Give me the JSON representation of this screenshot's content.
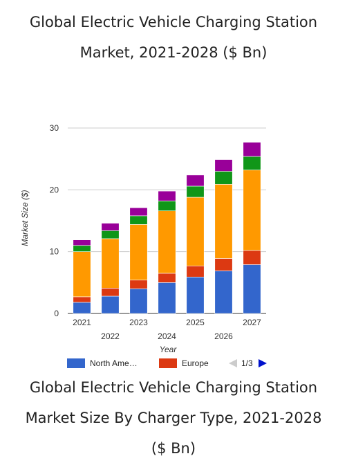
{
  "header": {
    "title_line1": "Global Electric Vehicle Charging Station",
    "title_line2": "Market, 2021-2028 ($ Bn)"
  },
  "footer": {
    "title_line1": "Global Electric Vehicle Charging Station",
    "title_line2": "Market Size By Charger Type, 2021-2028",
    "title_line3": "($ Bn)"
  },
  "chart_data": {
    "type": "bar",
    "stacked": true,
    "categories": [
      "2021",
      "2022",
      "2023",
      "2024",
      "2025",
      "2026",
      "2027"
    ],
    "xlabel": "Year",
    "ylabel": "Market Size ($)",
    "ylim": [
      0,
      30
    ],
    "yticks": [
      0,
      10,
      20,
      30
    ],
    "grid": true,
    "legend_position": "bottom",
    "series": [
      {
        "name": "North America",
        "legend_label": "North Ame…",
        "color": "#3366cc",
        "values": [
          1.8,
          2.8,
          4.0,
          5.0,
          5.9,
          6.9,
          7.9
        ]
      },
      {
        "name": "Europe",
        "legend_label": "Europe",
        "color": "#dc3912",
        "values": [
          0.9,
          1.3,
          1.4,
          1.5,
          1.8,
          2.0,
          2.3
        ]
      },
      {
        "color": "#ff9900",
        "values": [
          7.3,
          8.0,
          9.0,
          10.1,
          11.1,
          12.0,
          13.0
        ]
      },
      {
        "color": "#109618",
        "values": [
          1.0,
          1.3,
          1.4,
          1.6,
          1.8,
          2.1,
          2.2
        ]
      },
      {
        "color": "#990099",
        "values": [
          0.9,
          1.2,
          1.3,
          1.6,
          1.8,
          1.9,
          2.3
        ]
      }
    ],
    "pager": {
      "text": "1/3",
      "prev_color": "#cccccc",
      "next_color": "#0011cc"
    }
  }
}
